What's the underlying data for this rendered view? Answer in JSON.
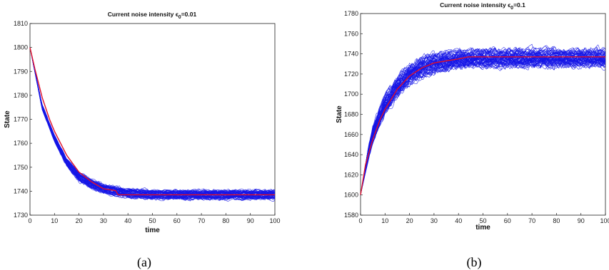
{
  "chart_data": [
    {
      "type": "line",
      "title": "Current noise intensity ε₀=0.01",
      "title_parts": {
        "prefix": "Current noise intensity ",
        "eps": "ϵ",
        "sub": "0",
        "suffix": "=0.01"
      },
      "xlabel": "time",
      "ylabel": "State",
      "xlim": [
        0,
        100
      ],
      "ylim": [
        1730,
        1810
      ],
      "xticks": [
        "0",
        "10",
        "20",
        "30",
        "40",
        "50",
        "60",
        "70",
        "80",
        "90",
        "100"
      ],
      "yticks": [
        "1730",
        "1740",
        "1750",
        "1760",
        "1770",
        "1780",
        "1790",
        "1800",
        "1810"
      ],
      "caption": "(a)",
      "grid": false,
      "colors": {
        "sample_paths": "#1515e6",
        "mean": "#e0102a"
      },
      "series": [
        {
          "values_desc": "ensemble of ~100 sample paths",
          "x": [
            0,
            5,
            10,
            15,
            20,
            25,
            30,
            35,
            40,
            50,
            60,
            70,
            80,
            90,
            100
          ],
          "y": [
            1800,
            1775,
            1762,
            1752,
            1746,
            1743,
            1741,
            1740,
            1739,
            1738.5,
            1738.5,
            1738.5,
            1738.5,
            1738.5,
            1738.5
          ],
          "spread": [
            0,
            1.5,
            2,
            2.5,
            3,
            3,
            3,
            3,
            3,
            3,
            3,
            3,
            3,
            3,
            3
          ]
        },
        {
          "x": [
            0,
            2,
            5,
            8,
            10,
            15,
            20,
            25,
            30,
            35,
            36,
            40,
            50,
            60,
            70,
            80,
            90,
            100
          ],
          "y": [
            1800,
            1791,
            1779,
            1770,
            1765,
            1755,
            1748,
            1744,
            1741,
            1740.2,
            1738.5,
            1738.5,
            1738.5,
            1738.5,
            1738.5,
            1738.5,
            1738.5,
            1738.5
          ]
        }
      ]
    },
    {
      "type": "line",
      "title": "Current noise intensity ε₀=0.1",
      "title_parts": {
        "prefix": "Current noise intensity ",
        "eps": "ϵ",
        "sub": "0",
        "suffix": "=0.1"
      },
      "xlabel": "time",
      "ylabel": "State",
      "xlim": [
        0,
        100
      ],
      "ylim": [
        1580,
        1780
      ],
      "xticks": [
        "0",
        "10",
        "20",
        "30",
        "40",
        "50",
        "60",
        "70",
        "80",
        "90",
        "100"
      ],
      "yticks": [
        "1580",
        "1600",
        "1620",
        "1640",
        "1660",
        "1680",
        "1700",
        "1720",
        "1740",
        "1760",
        "1780"
      ],
      "caption": "(b)",
      "grid": false,
      "colors": {
        "sample_paths": "#1515e6",
        "mean": "#e0102a"
      },
      "series": [
        {
          "values_desc": "ensemble of ~100 sample paths",
          "x": [
            0,
            3,
            5,
            10,
            15,
            20,
            25,
            30,
            40,
            50,
            60,
            70,
            80,
            90,
            100
          ],
          "y": [
            1600,
            1640,
            1660,
            1690,
            1708,
            1720,
            1727,
            1731,
            1735,
            1736,
            1736,
            1736,
            1736,
            1736,
            1736
          ],
          "spread": [
            0,
            10,
            14,
            16,
            16,
            16,
            16,
            15,
            14,
            14,
            14,
            14,
            14,
            14,
            14
          ]
        },
        {
          "x": [
            0,
            2,
            5,
            8,
            10,
            15,
            20,
            25,
            30,
            35,
            40,
            44,
            50,
            60,
            70,
            80,
            90,
            100
          ],
          "y": [
            1600,
            1630,
            1655,
            1675,
            1685,
            1705,
            1718,
            1726,
            1731,
            1733,
            1735,
            1737,
            1737,
            1737,
            1737,
            1737,
            1737,
            1737
          ]
        }
      ]
    }
  ]
}
